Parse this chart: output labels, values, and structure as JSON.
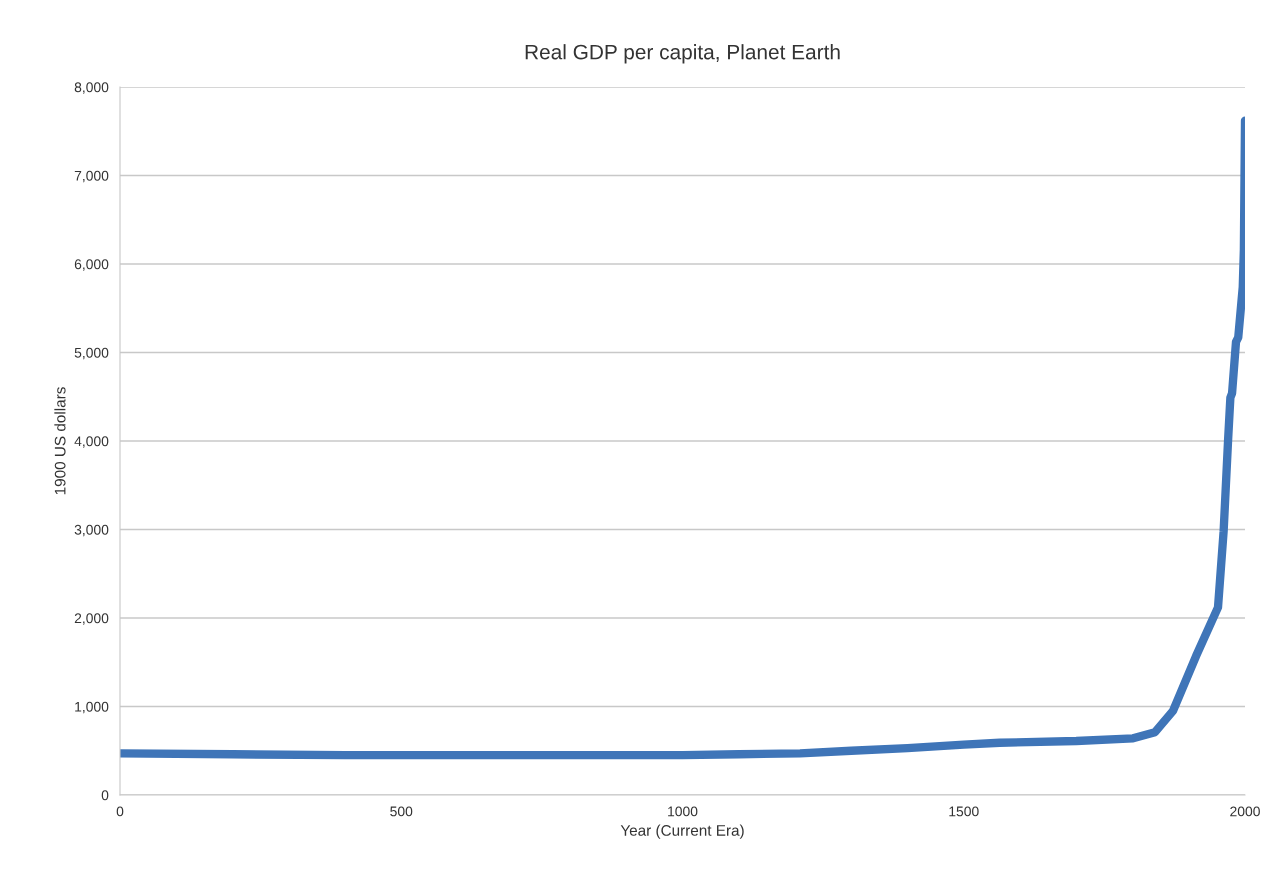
{
  "chart_data": {
    "type": "line",
    "title": "Real GDP per capita, Planet Earth",
    "xlabel": "Year (Current Era)",
    "ylabel": "1900 US dollars",
    "x": [
      0,
      200,
      400,
      600,
      800,
      1000,
      1100,
      1209,
      1300,
      1400,
      1500,
      1564,
      1700,
      1801,
      1840,
      1872,
      1913,
      1952,
      1962,
      1970,
      1974,
      1977,
      1984,
      1988,
      1996,
      1998,
      2000
    ],
    "series": [
      {
        "color": "#3f75b8",
        "values": [
          470,
          460,
          450,
          450,
          450,
          450,
          460,
          470,
          500,
          530,
          570,
          590,
          610,
          640,
          710,
          950,
          1570,
          2120,
          2980,
          4020,
          4490,
          4540,
          5120,
          5170,
          5740,
          6160,
          7620
        ]
      }
    ],
    "xlim": [
      0,
      2000
    ],
    "xticks": [
      0,
      500,
      1000,
      1500,
      2000
    ],
    "ylim": [
      0,
      8000
    ],
    "yticks": [
      {
        "value": 0,
        "label": "0"
      },
      {
        "value": 1000,
        "label": "1,000"
      },
      {
        "value": 2000,
        "label": "2,000"
      },
      {
        "value": 3000,
        "label": "3,000"
      },
      {
        "value": 4000,
        "label": "4,000"
      },
      {
        "value": 5000,
        "label": "5,000"
      },
      {
        "value": 6000,
        "label": "6,000"
      },
      {
        "value": 7000,
        "label": "7,000"
      },
      {
        "value": 8000,
        "label": "8,000"
      }
    ],
    "grid": "y"
  }
}
